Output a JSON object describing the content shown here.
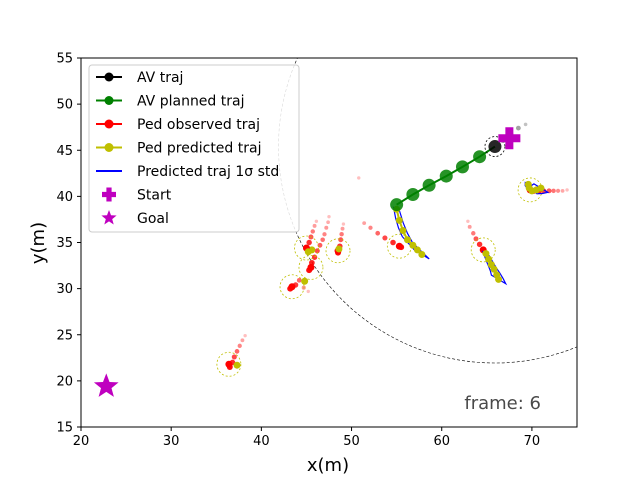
{
  "chart_data": {
    "type": "scatter",
    "xlabel": "x(m)",
    "ylabel": "y(m)",
    "xlim": [
      20,
      75
    ],
    "ylim": [
      15,
      55
    ],
    "xticks": [
      20,
      30,
      40,
      50,
      60,
      70
    ],
    "yticks": [
      15,
      20,
      25,
      30,
      35,
      40,
      45,
      50,
      55
    ],
    "grid": false,
    "legend_position": "upper-left",
    "legend": [
      {
        "label": "AV traj",
        "marker": "circle",
        "color": "#000000"
      },
      {
        "label": "AV planned traj",
        "marker": "circle",
        "color": "#008000"
      },
      {
        "label": "Ped observed traj",
        "marker": "circle",
        "color": "#ff0000"
      },
      {
        "label": "Ped predicted traj",
        "marker": "circle",
        "color": "#bfbf00"
      },
      {
        "label": "Predicted traj 1σ std",
        "marker": "line",
        "color": "#0000ff"
      },
      {
        "label": "Start",
        "marker": "plus",
        "color": "#bf00bf"
      },
      {
        "label": "Goal",
        "marker": "star",
        "color": "#bf00bf"
      }
    ],
    "annotation": "frame: 6",
    "av_current": [
      65.9,
      45.4
    ],
    "av_past": [
      [
        66.8,
        46.2
      ],
      [
        67.6,
        46.8
      ],
      [
        68.5,
        47.4
      ],
      [
        69.3,
        47.8
      ]
    ],
    "av_planned": [
      [
        55.0,
        39.1
      ],
      [
        56.8,
        40.2
      ],
      [
        58.6,
        41.2
      ],
      [
        60.5,
        42.2
      ],
      [
        62.3,
        43.2
      ],
      [
        64.2,
        44.3
      ]
    ],
    "sensor_radius": 24,
    "start": [
      67.5,
      46.3
    ],
    "goal": [
      22.8,
      19.4
    ],
    "pedestrians": [
      {
        "observed": [
          [
            36.5,
            21.5
          ],
          [
            36.8,
            22.0
          ],
          [
            37.0,
            22.6
          ],
          [
            37.3,
            23.2
          ],
          [
            37.6,
            23.8
          ],
          [
            37.9,
            24.4
          ],
          [
            38.2,
            24.9
          ]
        ],
        "current": [
          36.4,
          21.8
        ],
        "predicted": [
          [
            37.3,
            21.7
          ]
        ]
      },
      {
        "observed": [
          [
            43.2,
            30.0
          ],
          [
            43.8,
            30.4
          ],
          [
            44.2,
            30.9
          ],
          [
            44.7,
            30.1
          ],
          [
            45.2,
            29.7
          ]
        ],
        "current": [
          43.4,
          30.2
        ],
        "predicted": [
          [
            44.8,
            30.8
          ]
        ]
      },
      {
        "observed": [
          [
            45.3,
            32.0
          ],
          [
            45.6,
            32.8
          ],
          [
            45.9,
            33.4
          ],
          [
            46.2,
            34.1
          ],
          [
            46.5,
            34.7
          ],
          [
            46.8,
            35.3
          ],
          [
            47.0,
            35.9
          ],
          [
            47.2,
            36.6
          ],
          [
            47.4,
            37.2
          ],
          [
            47.5,
            37.8
          ]
        ],
        "current": [
          45.5,
          32.3
        ],
        "predicted": [
          [
            45.6,
            34.2
          ]
        ]
      },
      {
        "observed": [
          [
            45.0,
            34.4
          ],
          [
            45.3,
            35.0
          ],
          [
            45.5,
            35.6
          ],
          [
            45.7,
            36.2
          ],
          [
            45.9,
            36.8
          ],
          [
            46.1,
            37.3
          ]
        ],
        "current": [
          45.0,
          34.4
        ],
        "predicted": [
          [
            45.2,
            34.0
          ]
        ]
      },
      {
        "observed": [
          [
            48.5,
            33.9
          ],
          [
            48.7,
            34.6
          ],
          [
            48.8,
            35.3
          ],
          [
            48.9,
            35.9
          ],
          [
            49.0,
            36.5
          ],
          [
            49.1,
            37.0
          ]
        ],
        "current": [
          48.5,
          34.1
        ],
        "predicted": [
          [
            48.6,
            34.3
          ]
        ]
      },
      {
        "observed": [
          [
            55.5,
            34.5
          ],
          [
            54.6,
            35.0
          ],
          [
            53.7,
            35.5
          ],
          [
            52.9,
            36.0
          ],
          [
            52.1,
            36.6
          ],
          [
            51.4,
            37.1
          ],
          [
            50.8,
            42.0
          ]
        ],
        "current": [
          55.3,
          34.6
        ],
        "predicted": [
          [
            55.0,
            38.6
          ],
          [
            55.3,
            37.4
          ],
          [
            55.7,
            36.3
          ],
          [
            56.2,
            35.3
          ],
          [
            56.8,
            34.7
          ],
          [
            57.3,
            34.2
          ],
          [
            57.8,
            33.7
          ]
        ]
      },
      {
        "observed": [
          [
            64.6,
            34.2
          ],
          [
            64.2,
            34.8
          ],
          [
            63.8,
            35.4
          ],
          [
            63.5,
            36.0
          ],
          [
            63.1,
            36.7
          ],
          [
            62.9,
            37.3
          ]
        ],
        "current": [
          64.6,
          34.2
        ],
        "predicted": [
          [
            64.9,
            33.8
          ],
          [
            65.2,
            33.2
          ],
          [
            65.5,
            32.6
          ],
          [
            65.8,
            32.1
          ],
          [
            66.1,
            31.5
          ],
          [
            66.3,
            31.0
          ]
        ]
      },
      {
        "observed": [
          [
            70.2,
            40.6
          ],
          [
            70.8,
            40.6
          ],
          [
            71.3,
            40.6
          ],
          [
            71.9,
            40.6
          ],
          [
            72.4,
            40.6
          ],
          [
            72.9,
            40.6
          ],
          [
            73.4,
            40.6
          ],
          [
            73.9,
            40.7
          ]
        ],
        "current": [
          69.8,
          40.7
        ],
        "predicted": [
          [
            69.6,
            41.3
          ],
          [
            69.7,
            40.9
          ],
          [
            70.0,
            40.6
          ],
          [
            70.5,
            40.7
          ],
          [
            71.0,
            40.9
          ]
        ]
      }
    ]
  }
}
